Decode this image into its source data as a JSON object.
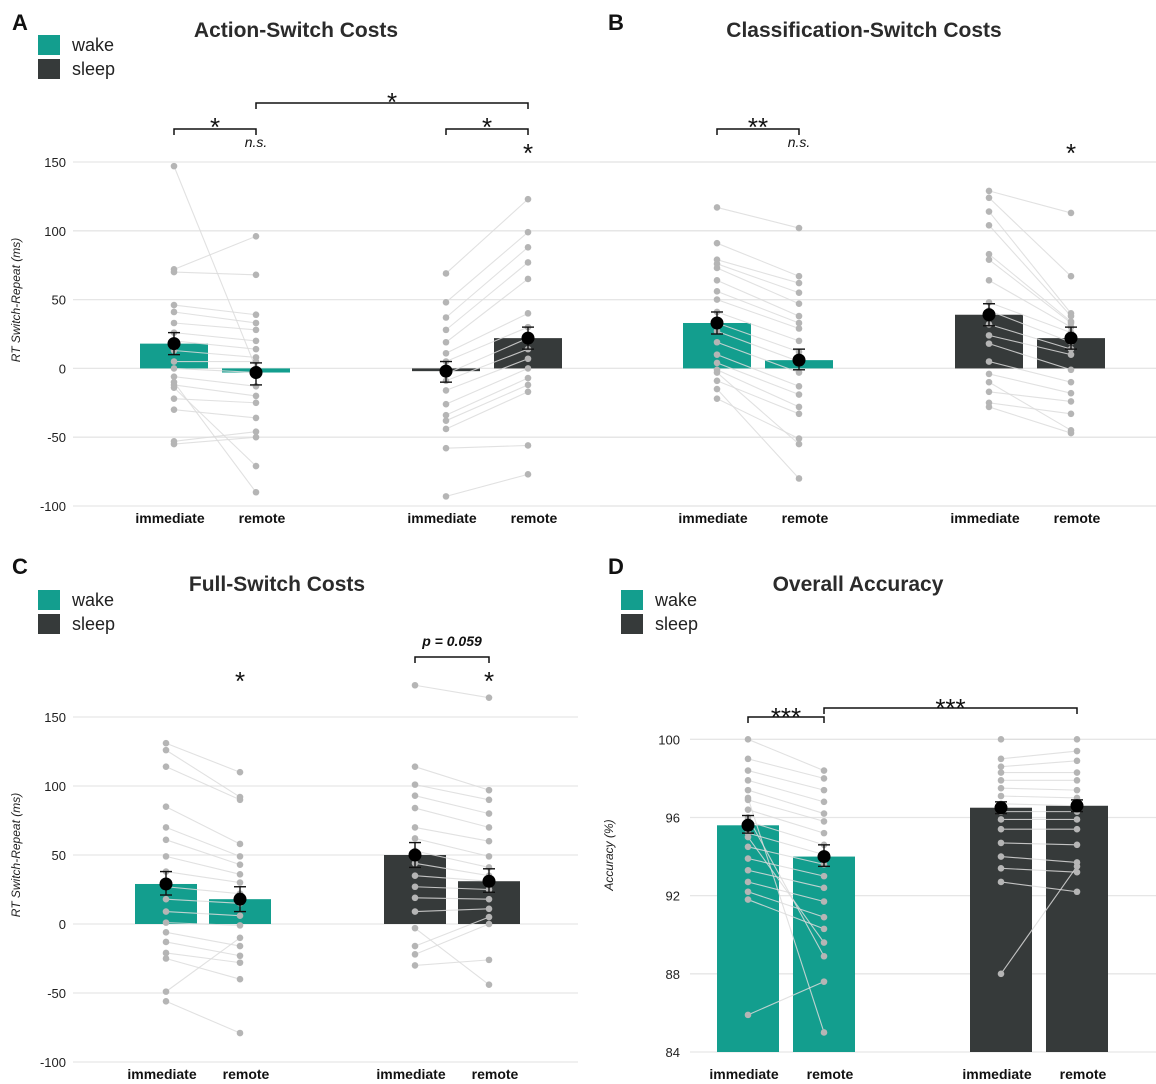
{
  "colors": {
    "wake": "#139e8e",
    "sleep": "#363a3a"
  },
  "legend": [
    {
      "group": "wake",
      "label": "wake"
    },
    {
      "group": "sleep",
      "label": "sleep"
    }
  ],
  "chart_data": [
    {
      "panel_letter": "A",
      "title": "Action-Switch Costs",
      "type": "bar",
      "ylabel": "RT Switch-Repeat (ms)",
      "ylim": [
        -100,
        150
      ],
      "yticks": [
        -100,
        -50,
        0,
        50,
        100,
        150
      ],
      "grid": true,
      "legend": "top-left",
      "groups": [
        {
          "name": "wake",
          "categories": [
            "immediate",
            "remote"
          ],
          "means": [
            18,
            -3
          ],
          "se": [
            [
              10,
              26
            ],
            [
              -12,
              4
            ]
          ],
          "subjects": [
            [
              147,
              0
            ],
            [
              72,
              96
            ],
            [
              70,
              68
            ],
            [
              46,
              39
            ],
            [
              41,
              33
            ],
            [
              33,
              28
            ],
            [
              26,
              20
            ],
            [
              20,
              14
            ],
            [
              13,
              8
            ],
            [
              5,
              5
            ],
            [
              0,
              -3
            ],
            [
              -6,
              -13
            ],
            [
              -12,
              -20
            ],
            [
              -22,
              -25
            ],
            [
              -30,
              -36
            ],
            [
              -53,
              -46
            ],
            [
              -55,
              -50
            ],
            [
              -14,
              -71
            ],
            [
              -10,
              -90
            ]
          ]
        },
        {
          "name": "sleep",
          "categories": [
            "immediate",
            "remote"
          ],
          "means": [
            -2,
            22
          ],
          "se": [
            [
              -10,
              5
            ],
            [
              14,
              30
            ]
          ],
          "subjects": [
            [
              69,
              123
            ],
            [
              48,
              99
            ],
            [
              37,
              88
            ],
            [
              28,
              77
            ],
            [
              19,
              65
            ],
            [
              11,
              40
            ],
            [
              5,
              30
            ],
            [
              -4,
              22
            ],
            [
              -9,
              14
            ],
            [
              -16,
              7
            ],
            [
              -26,
              0
            ],
            [
              -34,
              -7
            ],
            [
              -38,
              -12
            ],
            [
              -44,
              -17
            ],
            [
              -58,
              -56
            ],
            [
              -93,
              -77
            ]
          ]
        }
      ],
      "annotations": [
        {
          "label": "*",
          "type": "bracket",
          "from": "wake.immediate",
          "to": "wake.remote"
        },
        {
          "label": "n.s.",
          "type": "text",
          "at": "wake.remote"
        },
        {
          "label": "*",
          "type": "bracket",
          "from": "wake.remote",
          "to": "sleep.remote"
        },
        {
          "label": "*",
          "type": "bracket",
          "from": "sleep.immediate",
          "to": "sleep.remote"
        },
        {
          "label": "*",
          "type": "text",
          "at": "sleep.remote"
        }
      ]
    },
    {
      "panel_letter": "B",
      "title": "Classification-Switch Costs",
      "type": "bar",
      "ylabel": "",
      "ylim": [
        -100,
        150
      ],
      "yticks": [
        -100,
        -50,
        0,
        50,
        100,
        150
      ],
      "grid": true,
      "legend": "",
      "groups": [
        {
          "name": "wake",
          "categories": [
            "immediate",
            "remote"
          ],
          "means": [
            33,
            6
          ],
          "se": [
            [
              25,
              41
            ],
            [
              -1,
              14
            ]
          ],
          "subjects": [
            [
              117,
              102
            ],
            [
              91,
              67
            ],
            [
              79,
              62
            ],
            [
              76,
              55
            ],
            [
              73,
              47
            ],
            [
              64,
              38
            ],
            [
              56,
              33
            ],
            [
              50,
              29
            ],
            [
              41,
              20
            ],
            [
              33,
              12
            ],
            [
              27,
              5
            ],
            [
              19,
              -3
            ],
            [
              10,
              -13
            ],
            [
              4,
              -19
            ],
            [
              -1,
              -28
            ],
            [
              -9,
              -33
            ],
            [
              -22,
              -51
            ],
            [
              -3,
              -55
            ],
            [
              -15,
              -80
            ]
          ]
        },
        {
          "name": "sleep",
          "categories": [
            "immediate",
            "remote"
          ],
          "means": [
            39,
            22
          ],
          "se": [
            [
              31,
              47
            ],
            [
              14,
              30
            ]
          ],
          "subjects": [
            [
              129,
              113
            ],
            [
              124,
              67
            ],
            [
              114,
              40
            ],
            [
              104,
              38
            ],
            [
              83,
              34
            ],
            [
              79,
              33
            ],
            [
              64,
              30
            ],
            [
              48,
              26
            ],
            [
              42,
              19
            ],
            [
              32,
              14
            ],
            [
              24,
              10
            ],
            [
              18,
              -1
            ],
            [
              5,
              -10
            ],
            [
              -4,
              -18
            ],
            [
              -17,
              -24
            ],
            [
              -25,
              -33
            ],
            [
              -28,
              -47
            ],
            [
              -10,
              -45
            ]
          ]
        }
      ],
      "annotations": [
        {
          "label": "**",
          "type": "bracket",
          "from": "wake.immediate",
          "to": "wake.remote"
        },
        {
          "label": "n.s.",
          "type": "text",
          "at": "wake.remote"
        },
        {
          "label": "*",
          "type": "text",
          "at": "sleep.remote"
        }
      ]
    },
    {
      "panel_letter": "C",
      "title": "Full-Switch Costs",
      "type": "bar",
      "ylabel": "RT Switch-Repeat (ms)",
      "ylim": [
        -100,
        150
      ],
      "yticks": [
        -100,
        -50,
        0,
        50,
        100,
        150
      ],
      "grid": true,
      "legend": "top-left",
      "groups": [
        {
          "name": "wake",
          "categories": [
            "immediate",
            "remote"
          ],
          "means": [
            29,
            18
          ],
          "se": [
            [
              21,
              38
            ],
            [
              9,
              27
            ]
          ],
          "subjects": [
            [
              131,
              110
            ],
            [
              126,
              92
            ],
            [
              114,
              90
            ],
            [
              85,
              58
            ],
            [
              70,
              49
            ],
            [
              61,
              43
            ],
            [
              49,
              36
            ],
            [
              38,
              30
            ],
            [
              27,
              22
            ],
            [
              18,
              15
            ],
            [
              9,
              6
            ],
            [
              1,
              -1
            ],
            [
              -6,
              -16
            ],
            [
              -13,
              -23
            ],
            [
              -21,
              -28
            ],
            [
              -25,
              -40
            ],
            [
              -49,
              -10
            ],
            [
              -56,
              -79
            ]
          ]
        },
        {
          "name": "sleep",
          "categories": [
            "immediate",
            "remote"
          ],
          "means": [
            50,
            31
          ],
          "se": [
            [
              41,
              59
            ],
            [
              23,
              40
            ]
          ],
          "subjects": [
            [
              173,
              164
            ],
            [
              114,
              97
            ],
            [
              101,
              90
            ],
            [
              93,
              80
            ],
            [
              84,
              70
            ],
            [
              70,
              60
            ],
            [
              62,
              49
            ],
            [
              53,
              41
            ],
            [
              44,
              35
            ],
            [
              35,
              31
            ],
            [
              27,
              25
            ],
            [
              19,
              18
            ],
            [
              9,
              11
            ],
            [
              -16,
              5
            ],
            [
              -22,
              0
            ],
            [
              -30,
              -26
            ],
            [
              -3,
              -44
            ]
          ]
        }
      ],
      "annotations": [
        {
          "label": "*",
          "type": "text",
          "at": "wake.remote"
        },
        {
          "label": "p = 0.059",
          "type": "bracket",
          "from": "sleep.immediate",
          "to": "sleep.remote"
        },
        {
          "label": "*",
          "type": "text",
          "at": "sleep.remote"
        }
      ]
    },
    {
      "panel_letter": "D",
      "title": "Overall Accuracy",
      "type": "bar",
      "ylabel": "Accuracy (%)",
      "ylim": [
        84,
        101.5
      ],
      "yticks": [
        84,
        88,
        92,
        96,
        100
      ],
      "grid": true,
      "legend": "top-left",
      "groups": [
        {
          "name": "wake",
          "categories": [
            "immediate",
            "remote"
          ],
          "means": [
            95.6,
            94.0
          ],
          "se": [
            [
              95.2,
              96.1
            ],
            [
              93.5,
              94.6
            ]
          ],
          "subjects": [
            [
              100,
              98.4
            ],
            [
              99.0,
              98.0
            ],
            [
              98.4,
              97.4
            ],
            [
              97.9,
              96.8
            ],
            [
              97.4,
              96.2
            ],
            [
              96.9,
              95.8
            ],
            [
              96.4,
              95.2
            ],
            [
              95.8,
              94.6
            ],
            [
              95.2,
              94.1
            ],
            [
              94.5,
              93.6
            ],
            [
              93.9,
              93.0
            ],
            [
              93.3,
              92.4
            ],
            [
              92.7,
              91.7
            ],
            [
              92.2,
              90.9
            ],
            [
              91.8,
              90.3
            ],
            [
              95.0,
              89.6
            ],
            [
              96.0,
              88.9
            ],
            [
              85.9,
              87.6
            ],
            [
              97.0,
              85.0
            ]
          ]
        },
        {
          "name": "sleep",
          "categories": [
            "immediate",
            "remote"
          ],
          "means": [
            96.5,
            96.6
          ],
          "se": [
            [
              96.2,
              96.8
            ],
            [
              96.3,
              96.9
            ]
          ],
          "subjects": [
            [
              100,
              100
            ],
            [
              99.0,
              99.4
            ],
            [
              98.6,
              98.9
            ],
            [
              98.3,
              98.3
            ],
            [
              97.9,
              97.9
            ],
            [
              97.5,
              97.4
            ],
            [
              97.1,
              97.0
            ],
            [
              96.7,
              96.6
            ],
            [
              96.3,
              96.3
            ],
            [
              95.9,
              95.9
            ],
            [
              95.4,
              95.4
            ],
            [
              94.7,
              94.6
            ],
            [
              94.0,
              93.7
            ],
            [
              93.4,
              93.2
            ],
            [
              92.7,
              92.2
            ],
            [
              88.0,
              93.5
            ]
          ]
        }
      ],
      "annotations": [
        {
          "label": "***",
          "type": "bracket",
          "from": "wake.immediate",
          "to": "wake.remote"
        },
        {
          "label": "***",
          "type": "bracket",
          "from": "wake.remote",
          "to": "sleep.remote"
        }
      ]
    }
  ]
}
